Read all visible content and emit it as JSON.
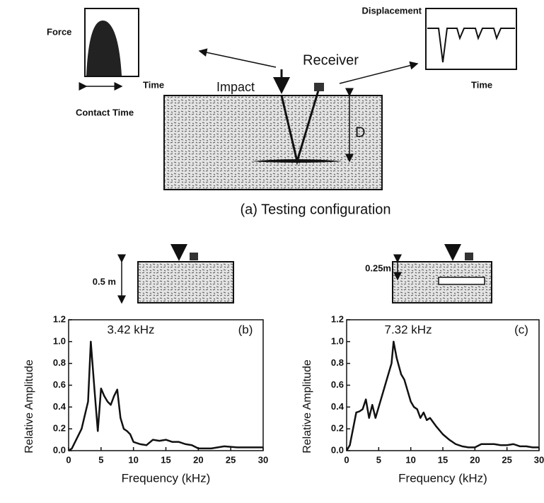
{
  "diagram": {
    "force_label": "Force",
    "force_time": "Time",
    "contact_time": "Contact Time",
    "displacement_label": "Displacement",
    "displacement_time": "Time",
    "receiver": "Receiver",
    "impact": "Impact",
    "depth": "D",
    "caption": "(a) Testing configuration",
    "depth_b": "0.5 m",
    "depth_c": "0.25m"
  },
  "chart_data": [
    {
      "type": "line",
      "y_label": "Relative Amplitude",
      "x_label": "Frequency (kHz)",
      "peak_label": "3.42 kHz",
      "panel_label": "(b)",
      "xlim": [
        0,
        30
      ],
      "xticks": [
        0,
        5,
        10,
        15,
        20,
        25,
        30
      ],
      "ylim": [
        0,
        1.2
      ],
      "yticks": [
        {
          "value": 0,
          "label": "0.0"
        },
        0.2,
        0.4,
        0.6,
        0.8,
        {
          "value": 1,
          "label": "1.0"
        },
        1.2
      ],
      "series": [
        {
          "color": "#111111",
          "x": [
            0,
            0.5,
            1,
            2,
            3,
            3.42,
            4,
            4.5,
            5,
            5.5,
            6,
            6.5,
            7,
            7.5,
            8,
            8.5,
            9,
            9.5,
            10,
            11,
            12,
            13,
            14,
            15,
            16,
            17,
            18,
            19,
            20,
            22,
            24,
            26,
            28,
            30
          ],
          "values": [
            0,
            0.02,
            0.08,
            0.2,
            0.45,
            1.0,
            0.55,
            0.18,
            0.57,
            0.5,
            0.45,
            0.42,
            0.5,
            0.56,
            0.3,
            0.2,
            0.18,
            0.15,
            0.08,
            0.06,
            0.05,
            0.1,
            0.09,
            0.1,
            0.08,
            0.08,
            0.06,
            0.05,
            0.02,
            0.02,
            0.04,
            0.03,
            0.03,
            0.03
          ]
        }
      ]
    },
    {
      "type": "line",
      "y_label": "Relative Amplitude",
      "x_label": "Frequency (kHz)",
      "peak_label": "7.32 kHz",
      "panel_label": "(c)",
      "xlim": [
        0,
        30
      ],
      "xticks": [
        0,
        5,
        10,
        15,
        20,
        25,
        30
      ],
      "ylim": [
        0,
        1.2
      ],
      "yticks": [
        {
          "value": 0,
          "label": "0.0"
        },
        0.2,
        0.4,
        0.6,
        0.8,
        {
          "value": 1,
          "label": "1.0"
        },
        1.2
      ],
      "series": [
        {
          "color": "#111111",
          "x": [
            0,
            0.5,
            1,
            1.5,
            2,
            2.5,
            3,
            3.5,
            4,
            4.5,
            5,
            5.5,
            6,
            6.5,
            7,
            7.32,
            7.8,
            8.5,
            9,
            9.5,
            10,
            10.5,
            11,
            11.5,
            12,
            12.5,
            13,
            14,
            15,
            16,
            17,
            18,
            19,
            20,
            21,
            22,
            23,
            24,
            25,
            26,
            27,
            28,
            29,
            30
          ],
          "values": [
            0,
            0.05,
            0.2,
            0.35,
            0.36,
            0.38,
            0.47,
            0.3,
            0.42,
            0.3,
            0.4,
            0.5,
            0.6,
            0.7,
            0.8,
            1.0,
            0.85,
            0.7,
            0.65,
            0.55,
            0.45,
            0.4,
            0.38,
            0.3,
            0.35,
            0.28,
            0.3,
            0.22,
            0.15,
            0.1,
            0.06,
            0.04,
            0.03,
            0.03,
            0.06,
            0.06,
            0.06,
            0.05,
            0.05,
            0.06,
            0.04,
            0.04,
            0.03,
            0.03
          ]
        }
      ]
    }
  ]
}
